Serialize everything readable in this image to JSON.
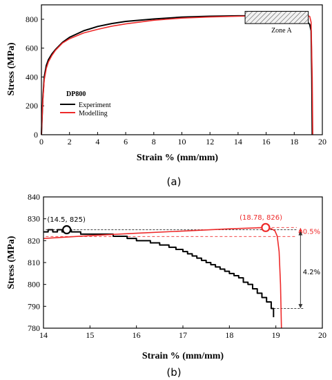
{
  "chart_data": [
    {
      "type": "line",
      "xlabel": "Strain % (mm/mm)",
      "ylabel": "Stress (MPa)",
      "xlim": [
        0,
        20
      ],
      "ylim": [
        0,
        900
      ],
      "xticks": [
        0,
        2,
        4,
        6,
        8,
        10,
        12,
        14,
        16,
        18,
        20
      ],
      "yticks": [
        0,
        200,
        400,
        600,
        800
      ],
      "legend_title": "DP800",
      "legend_position": "lower-left",
      "caption": "(a)",
      "zone": {
        "label": "Zone A",
        "x": [
          14.5,
          19.0
        ],
        "y": [
          770,
          855
        ]
      },
      "series": [
        {
          "name": "Experiment",
          "color": "#000000",
          "x": [
            0,
            0.1,
            0.2,
            0.35,
            0.5,
            0.75,
            1.0,
            1.5,
            2.0,
            3.0,
            4.0,
            5.0,
            6.0,
            8.0,
            10.0,
            12.0,
            14.0,
            15.0,
            16.0,
            17.0,
            18.0,
            18.5,
            18.9,
            19.1,
            19.2,
            19.25,
            19.28
          ],
          "y": [
            0,
            250,
            400,
            480,
            520,
            560,
            590,
            640,
            675,
            720,
            750,
            770,
            785,
            802,
            815,
            821,
            824,
            824,
            822,
            817,
            808,
            798,
            785,
            765,
            720,
            400,
            0
          ]
        },
        {
          "name": "Modelling",
          "color": "#ee2a2a",
          "x": [
            0,
            0.1,
            0.2,
            0.35,
            0.5,
            0.75,
            1.0,
            1.5,
            2.0,
            3.0,
            4.0,
            5.0,
            6.0,
            8.0,
            10.0,
            12.0,
            14.0,
            16.0,
            18.0,
            18.78,
            18.95,
            19.1,
            19.2,
            19.28,
            19.32
          ],
          "y": [
            0,
            230,
            380,
            460,
            505,
            550,
            585,
            635,
            665,
            705,
            730,
            752,
            768,
            793,
            808,
            816,
            821,
            824,
            825.5,
            826,
            825,
            820,
            780,
            400,
            0
          ]
        }
      ]
    },
    {
      "type": "line",
      "xlabel": "Strain % (mm/mm)",
      "ylabel": "Stress (MPa)",
      "xlim": [
        14,
        20
      ],
      "ylim": [
        780,
        840
      ],
      "xticks": [
        14,
        15,
        16,
        17,
        18,
        19,
        20
      ],
      "yticks": [
        780,
        790,
        800,
        810,
        820,
        830,
        840
      ],
      "caption": "(b)",
      "series": [
        {
          "name": "Experiment",
          "color": "#000000",
          "x": [
            14.0,
            14.1,
            14.1,
            14.2,
            14.2,
            14.3,
            14.3,
            14.4,
            14.4,
            14.5,
            14.5,
            14.6,
            14.6,
            14.8,
            14.8,
            15.5,
            15.5,
            15.8,
            15.8,
            16.0,
            16.0,
            16.3,
            16.3,
            16.5,
            16.5,
            16.7,
            16.7,
            16.85,
            16.85,
            17.0,
            17.0,
            17.1,
            17.1,
            17.2,
            17.2,
            17.3,
            17.3,
            17.4,
            17.4,
            17.5,
            17.5,
            17.6,
            17.6,
            17.7,
            17.7,
            17.8,
            17.8,
            17.9,
            17.9,
            18.0,
            18.0,
            18.1,
            18.1,
            18.2,
            18.2,
            18.3,
            18.3,
            18.4,
            18.4,
            18.5,
            18.5,
            18.6,
            18.6,
            18.7,
            18.7,
            18.8,
            18.8,
            18.9,
            18.9,
            18.95,
            18.95
          ],
          "y": [
            824,
            824,
            825,
            825,
            824,
            824,
            825,
            825,
            824,
            824,
            825,
            825,
            824,
            824,
            823,
            823,
            822,
            822,
            821,
            821,
            820,
            820,
            819,
            819,
            818,
            818,
            817,
            817,
            816,
            816,
            815,
            815,
            814,
            814,
            813,
            813,
            812,
            812,
            811,
            811,
            810,
            810,
            809,
            809,
            808,
            808,
            807,
            807,
            806,
            806,
            805,
            805,
            804,
            804,
            803,
            803,
            801,
            801,
            800,
            800,
            798,
            798,
            796,
            796,
            794,
            794,
            792,
            792,
            789,
            789,
            785
          ]
        },
        {
          "name": "Modelling",
          "color": "#ee2a2a",
          "x": [
            14.0,
            15.0,
            16.0,
            17.0,
            18.0,
            18.78,
            18.9,
            18.98,
            19.03,
            19.07,
            19.1,
            19.12
          ],
          "y": [
            821,
            822.3,
            823.4,
            824.4,
            825.4,
            826,
            825.5,
            824.5,
            822,
            815,
            800,
            780
          ]
        }
      ],
      "annotations": {
        "peak_exp": {
          "label": "(14.5,  825)",
          "x": 14.5,
          "y": 825
        },
        "peak_model": {
          "label": "(18.78,  826)",
          "x": 18.78,
          "y": 826
        },
        "drop_model": {
          "label": "0.5%",
          "y_from": 826,
          "y_to": 821.9
        },
        "drop_exp": {
          "label": "4.2%",
          "y_from": 824.5,
          "y_to": 789
        }
      }
    }
  ]
}
